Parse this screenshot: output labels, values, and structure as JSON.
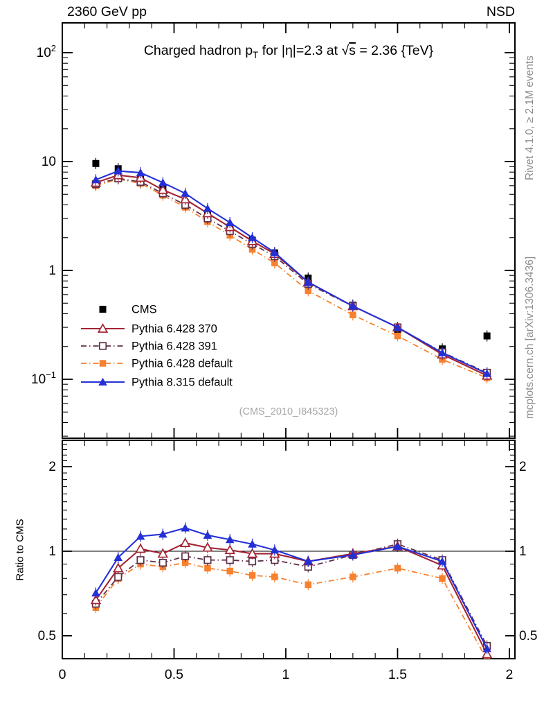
{
  "header": {
    "left": "2360 GeV pp",
    "right": "NSD"
  },
  "title": {
    "full": "Charged hadron p_T for |eta|=2.3 at sqrt(s) = 2.36 {TeV}",
    "part1": "Charged hadron p",
    "sub": "T",
    "part2": " for |η|=2.3 at ",
    "sqrt_radical": "√",
    "sqrt_arg": "s",
    "part3": " = 2.36 {TeV}"
  },
  "side_notes": {
    "top": "Rivet 4.1.0, ≥ 2.1M events",
    "bottom": "mcplots.cern.ch [arXiv:1306.3436]"
  },
  "watermark": "(CMS_2010_I845323)",
  "chart_data": {
    "type": "line",
    "title": "Charged hadron p_T for |η|=2.3 at √s = 2.36 {TeV}",
    "xlabel": "",
    "ylabel": "",
    "xlim": [
      0,
      2.025
    ],
    "xticks": [
      {
        "v": 0,
        "label": "0"
      },
      {
        "v": 0.5,
        "label": "0.5"
      },
      {
        "v": 1,
        "label": "1"
      },
      {
        "v": 1.5,
        "label": "1.5"
      },
      {
        "v": 2,
        "label": "2"
      }
    ],
    "x_bins": [
      0.15,
      0.25,
      0.35,
      0.45,
      0.55,
      0.65,
      0.75,
      0.85,
      0.95,
      1.1,
      1.3,
      1.5,
      1.7,
      1.9
    ],
    "main_panel": {
      "yscale": "log",
      "ylim": [
        0.0288,
        188
      ],
      "grid": false,
      "yticks": [
        {
          "v": 100,
          "base": "10",
          "exp": "2"
        },
        {
          "v": 10,
          "base": "10",
          "exp": ""
        },
        {
          "v": 1,
          "base": "1",
          "exp": ""
        },
        {
          "v": 0.1,
          "base": "10",
          "exp": "−1"
        }
      ]
    },
    "ratio_panel": {
      "yscale": "log",
      "ylim": [
        0.414,
        2.48
      ],
      "ylabel": "Ratio to CMS",
      "reference_line": 1,
      "yticks": [
        {
          "v": 2,
          "label": "2"
        },
        {
          "v": 1,
          "label": "1"
        },
        {
          "v": 0.5,
          "label": "0.5"
        }
      ]
    },
    "legend_position": "middle-left",
    "series": [
      {
        "name": "CMS",
        "color": "#000000",
        "marker": "square",
        "fill": "solid",
        "line": "none",
        "values": [
          9.6,
          8.6,
          7.0,
          5.6,
          4.2,
          3.25,
          2.5,
          1.9,
          1.45,
          0.85,
          0.48,
          0.285,
          0.19,
          0.25
        ],
        "ratio": null
      },
      {
        "name": "Pythia 6.428 370",
        "color": "#a22433",
        "marker": "triangle",
        "fill": "open",
        "line": "solid",
        "values": [
          6.4,
          7.5,
          7.1,
          5.5,
          4.5,
          3.35,
          2.5,
          1.86,
          1.42,
          0.78,
          0.47,
          0.3,
          0.169,
          0.108
        ],
        "ratio": [
          0.67,
          0.87,
          1.02,
          0.98,
          1.07,
          1.03,
          1.01,
          0.98,
          0.98,
          0.92,
          0.98,
          1.04,
          0.89,
          0.43
        ]
      },
      {
        "name": "Pythia 6.428 391",
        "color": "#5d3048",
        "marker": "square",
        "fill": "open",
        "line": "dashdot",
        "values": [
          6.2,
          7.0,
          6.5,
          5.1,
          4.0,
          3.0,
          2.3,
          1.75,
          1.35,
          0.75,
          0.47,
          0.3,
          0.177,
          0.115
        ],
        "ratio": [
          0.65,
          0.81,
          0.93,
          0.91,
          0.96,
          0.93,
          0.93,
          0.92,
          0.93,
          0.88,
          0.97,
          1.06,
          0.93,
          0.46
        ]
      },
      {
        "name": "Pythia 6.428 default",
        "color": "#f8812f",
        "marker": "square",
        "fill": "solid",
        "line": "dashdot",
        "values": [
          6.0,
          6.9,
          6.3,
          4.9,
          3.8,
          2.8,
          2.1,
          1.56,
          1.17,
          0.65,
          0.39,
          0.25,
          0.152,
          0.103
        ],
        "ratio": [
          0.63,
          0.8,
          0.9,
          0.88,
          0.91,
          0.87,
          0.85,
          0.82,
          0.81,
          0.76,
          0.81,
          0.87,
          0.8,
          0.41
        ]
      },
      {
        "name": "Pythia 8.315 default",
        "color": "#2430d6",
        "marker": "triangle",
        "fill": "solid",
        "line": "solid",
        "values": [
          6.8,
          8.2,
          7.9,
          6.4,
          5.1,
          3.7,
          2.75,
          2.0,
          1.46,
          0.78,
          0.47,
          0.3,
          0.175,
          0.113
        ],
        "ratio": [
          0.71,
          0.95,
          1.13,
          1.15,
          1.21,
          1.14,
          1.1,
          1.06,
          1.01,
          0.92,
          0.97,
          1.04,
          0.92,
          0.45
        ]
      }
    ]
  }
}
